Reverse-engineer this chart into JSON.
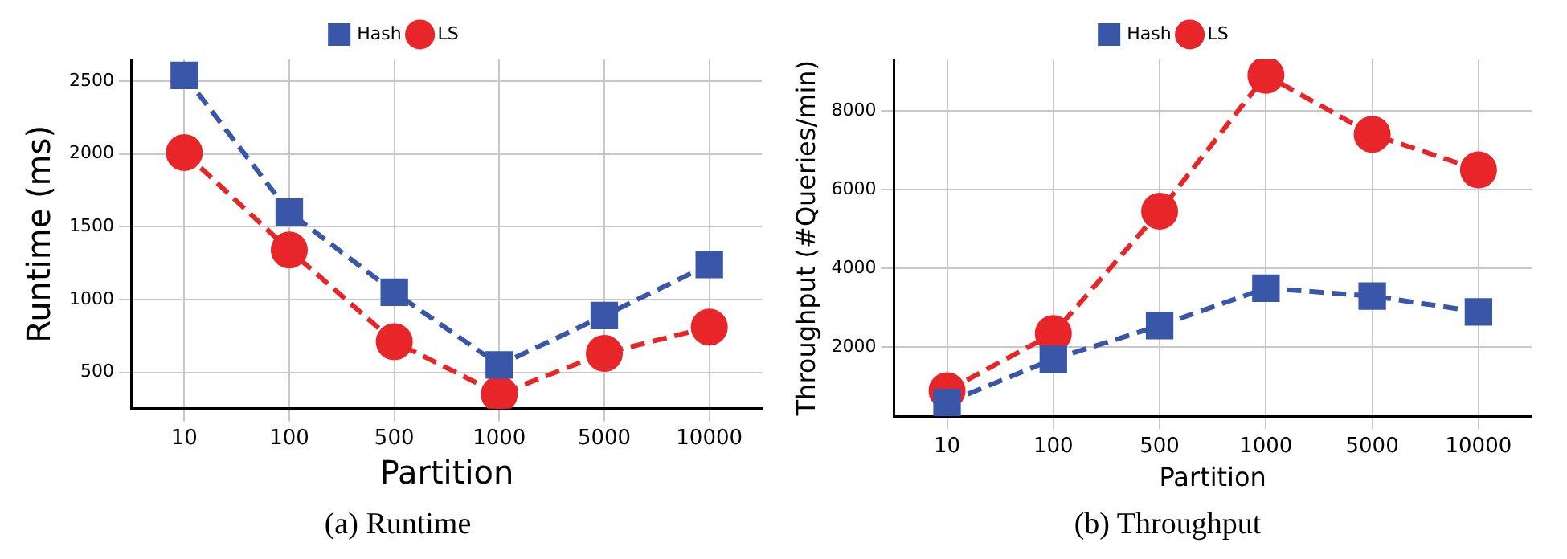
{
  "chart_data": [
    {
      "type": "line",
      "categories": [
        "10",
        "100",
        "500",
        "1000",
        "5000",
        "10000"
      ],
      "xlabel": "Partition",
      "ylabel": "Runtime (ms)",
      "ylim": [
        250,
        2650
      ],
      "yticks": [
        500,
        1000,
        1500,
        2000,
        2500
      ],
      "grid": true,
      "legend": "top",
      "line_style": "dashed",
      "annotations": [
        "(a) Runtime"
      ],
      "series": [
        {
          "name": "Hash",
          "color": "#3a56a8",
          "marker": "square",
          "values": [
            2540,
            1600,
            1050,
            550,
            890,
            1240
          ]
        },
        {
          "name": "LS",
          "color": "#e8262a",
          "marker": "circle",
          "values": [
            2010,
            1340,
            710,
            350,
            630,
            810
          ]
        }
      ]
    },
    {
      "type": "line",
      "categories": [
        "10",
        "100",
        "500",
        "1000",
        "5000",
        "10000"
      ],
      "xlabel": "Partition",
      "ylabel": "Throughput (#Queries/min)",
      "ylim": [
        250,
        9300
      ],
      "yticks": [
        2000,
        4000,
        6000,
        8000
      ],
      "grid": true,
      "legend": "top",
      "line_style": "dashed",
      "annotations": [
        "(b) Throughput"
      ],
      "series": [
        {
          "name": "Hash",
          "color": "#3a56a8",
          "marker": "square",
          "values": [
            600,
            1700,
            2550,
            3500,
            3300,
            2900
          ]
        },
        {
          "name": "LS",
          "color": "#e8262a",
          "marker": "circle",
          "values": [
            900,
            2350,
            5450,
            8900,
            7400,
            6500
          ]
        }
      ]
    }
  ]
}
